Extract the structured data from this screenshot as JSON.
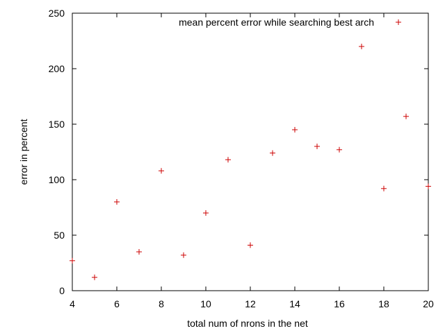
{
  "chart_data": {
    "type": "scatter",
    "title": "",
    "xlabel": "total num of nrons in the net",
    "ylabel": "error in percent",
    "xlim": [
      4,
      20
    ],
    "ylim": [
      0,
      250
    ],
    "xticks": [
      4,
      6,
      8,
      10,
      12,
      14,
      16,
      18,
      20
    ],
    "yticks": [
      0,
      50,
      100,
      150,
      200,
      250
    ],
    "grid": false,
    "legend_position": "top-right",
    "marker": "+",
    "series": [
      {
        "name": "mean percent error while searching best arch",
        "color": "#cc0000",
        "points": [
          {
            "x": 4,
            "y": 27
          },
          {
            "x": 5,
            "y": 12
          },
          {
            "x": 6,
            "y": 80
          },
          {
            "x": 7,
            "y": 35
          },
          {
            "x": 8,
            "y": 108
          },
          {
            "x": 9,
            "y": 32
          },
          {
            "x": 10,
            "y": 70
          },
          {
            "x": 11,
            "y": 118
          },
          {
            "x": 12,
            "y": 41
          },
          {
            "x": 13,
            "y": 124
          },
          {
            "x": 14,
            "y": 145
          },
          {
            "x": 15,
            "y": 130
          },
          {
            "x": 16,
            "y": 127
          },
          {
            "x": 17,
            "y": 220
          },
          {
            "x": 18,
            "y": 92
          },
          {
            "x": 19,
            "y": 157
          },
          {
            "x": 20,
            "y": 94
          }
        ]
      }
    ]
  }
}
